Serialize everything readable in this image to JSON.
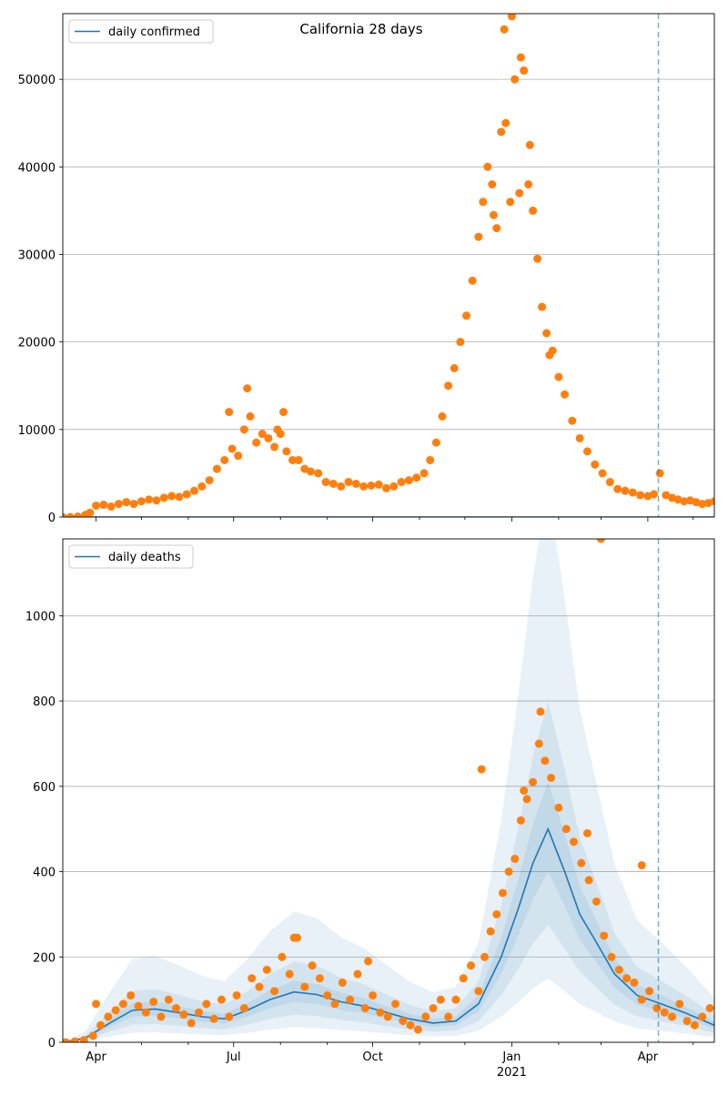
{
  "colors": {
    "model_line": "#1f77b4",
    "observed_dots": "#ff7f0e",
    "band": "#1f77b4",
    "grid": "#b0b0b0",
    "vline": "#1f77b4"
  },
  "chart_data": [
    {
      "type": "scatter",
      "title": "California 28 days",
      "legend": {
        "label": "daily confirmed",
        "placement": "top-left"
      },
      "xlabel": "",
      "ylabel": "",
      "ylim": [
        0,
        57500
      ],
      "yticks": [
        0,
        10000,
        20000,
        30000,
        40000,
        50000
      ],
      "grid": "horizontal",
      "model_series": {
        "name": "daily confirmed",
        "x": [
          "2020-03-10",
          "2021-05-15"
        ],
        "y": [
          0,
          0
        ]
      },
      "observed": {
        "x": [
          "2020-03-10",
          "2020-03-15",
          "2020-03-20",
          "2020-03-25",
          "2020-03-28",
          "2020-04-01",
          "2020-04-06",
          "2020-04-11",
          "2020-04-16",
          "2020-04-21",
          "2020-04-26",
          "2020-05-01",
          "2020-05-06",
          "2020-05-11",
          "2020-05-16",
          "2020-05-21",
          "2020-05-26",
          "2020-05-31",
          "2020-06-05",
          "2020-06-10",
          "2020-06-15",
          "2020-06-20",
          "2020-06-25",
          "2020-06-30",
          "2020-07-04",
          "2020-07-08",
          "2020-07-12",
          "2020-07-16",
          "2020-07-20",
          "2020-07-24",
          "2020-07-28",
          "2020-08-01",
          "2020-08-05",
          "2020-08-09",
          "2020-08-13",
          "2020-08-17",
          "2020-08-21",
          "2020-08-26",
          "2020-08-31",
          "2020-09-05",
          "2020-09-10",
          "2020-09-15",
          "2020-09-20",
          "2020-09-25",
          "2020-09-30",
          "2020-10-05",
          "2020-10-10",
          "2020-10-15",
          "2020-10-20",
          "2020-10-25",
          "2020-10-30",
          "2020-11-04",
          "2020-11-08",
          "2020-11-12",
          "2020-11-16",
          "2020-11-20",
          "2020-11-24",
          "2020-11-28",
          "2020-12-02",
          "2020-12-06",
          "2020-12-10",
          "2020-12-13",
          "2020-12-16",
          "2020-12-19",
          "2020-12-22",
          "2020-12-25",
          "2020-12-28",
          "2020-12-31",
          "2021-01-03",
          "2021-01-06",
          "2021-01-09",
          "2021-01-12",
          "2021-01-15",
          "2021-01-18",
          "2021-01-21",
          "2021-01-24",
          "2021-01-28",
          "2021-02-01",
          "2021-02-05",
          "2021-02-10",
          "2021-02-15",
          "2021-02-20",
          "2021-02-25",
          "2021-03-02",
          "2021-03-07",
          "2021-03-12",
          "2021-03-17",
          "2021-03-22",
          "2021-03-27",
          "2021-04-01",
          "2021-04-05",
          "2021-04-09",
          "2021-04-13",
          "2021-04-17",
          "2021-04-21",
          "2021-04-25",
          "2021-04-29",
          "2021-05-03",
          "2021-05-07",
          "2021-05-11",
          "2021-05-15",
          "2020-06-28",
          "2020-07-10",
          "2020-07-30",
          "2020-08-03",
          "2020-12-27",
          "2021-01-01",
          "2021-01-07",
          "2021-01-13",
          "2020-12-20",
          "2021-01-26"
        ],
        "y": [
          0,
          0,
          50,
          250,
          500,
          1300,
          1400,
          1200,
          1500,
          1700,
          1500,
          1800,
          2000,
          1900,
          2200,
          2400,
          2300,
          2600,
          3000,
          3500,
          4200,
          5500,
          6500,
          7800,
          7000,
          10000,
          11500,
          8500,
          9500,
          9000,
          8000,
          9500,
          7500,
          6500,
          6500,
          5500,
          5200,
          5000,
          4000,
          3800,
          3500,
          4000,
          3800,
          3500,
          3600,
          3700,
          3300,
          3500,
          4000,
          4200,
          4500,
          5000,
          6500,
          8500,
          11500,
          15000,
          17000,
          20000,
          23000,
          27000,
          32000,
          36000,
          40000,
          38000,
          33000,
          44000,
          45000,
          36000,
          50000,
          37000,
          51000,
          38000,
          35000,
          29500,
          24000,
          21000,
          19000,
          16000,
          14000,
          11000,
          9000,
          7500,
          6000,
          5000,
          4000,
          3200,
          3000,
          2800,
          2500,
          2400,
          2600,
          5000,
          2500,
          2200,
          2000,
          1800,
          1900,
          1700,
          1500,
          1600,
          1800,
          12000,
          14700,
          10000,
          12000,
          55700,
          57200,
          52500,
          42500,
          34500,
          18500
        ]
      },
      "vline_date": "2021-04-08"
    },
    {
      "type": "scatter",
      "title": "",
      "legend": {
        "label": "daily deaths",
        "placement": "top-left"
      },
      "xlabel": "",
      "ylabel": "",
      "ylim": [
        0,
        1180
      ],
      "yticks": [
        0,
        200,
        400,
        600,
        800,
        1000
      ],
      "grid": "horizontal",
      "model_series": {
        "name": "daily deaths",
        "x": [
          "2020-03-10",
          "2020-03-25",
          "2020-04-10",
          "2020-04-25",
          "2020-05-10",
          "2020-05-25",
          "2020-06-10",
          "2020-06-25",
          "2020-07-10",
          "2020-07-25",
          "2020-08-10",
          "2020-08-25",
          "2020-09-10",
          "2020-09-25",
          "2020-10-10",
          "2020-10-25",
          "2020-11-10",
          "2020-11-25",
          "2020-12-10",
          "2020-12-25",
          "2021-01-05",
          "2021-01-15",
          "2021-01-25",
          "2021-02-05",
          "2021-02-15",
          "2021-02-25",
          "2021-03-10",
          "2021-03-25",
          "2021-04-10",
          "2021-04-25",
          "2021-05-15"
        ],
        "y": [
          0,
          10,
          45,
          75,
          78,
          70,
          60,
          55,
          75,
          100,
          118,
          112,
          95,
          85,
          70,
          55,
          45,
          50,
          90,
          200,
          310,
          420,
          500,
          400,
          300,
          240,
          160,
          110,
          90,
          70,
          40
        ]
      },
      "bands": [
        {
          "upper_mult": 1.22,
          "lower_mult": 0.8
        },
        {
          "upper_mult": 1.6,
          "lower_mult": 0.55
        },
        {
          "upper_mult": 2.6,
          "lower_mult": 0.3
        }
      ],
      "observed": {
        "x": [
          "2020-03-12",
          "2020-03-18",
          "2020-03-24",
          "2020-03-30",
          "2020-04-04",
          "2020-04-09",
          "2020-04-14",
          "2020-04-19",
          "2020-04-24",
          "2020-04-29",
          "2020-05-04",
          "2020-05-09",
          "2020-05-14",
          "2020-05-19",
          "2020-05-24",
          "2020-05-29",
          "2020-06-03",
          "2020-06-08",
          "2020-06-13",
          "2020-06-18",
          "2020-06-23",
          "2020-06-28",
          "2020-07-03",
          "2020-07-08",
          "2020-07-13",
          "2020-07-18",
          "2020-07-23",
          "2020-07-28",
          "2020-08-02",
          "2020-08-07",
          "2020-08-12",
          "2020-08-17",
          "2020-08-22",
          "2020-08-27",
          "2020-09-01",
          "2020-09-06",
          "2020-09-11",
          "2020-09-16",
          "2020-09-21",
          "2020-09-26",
          "2020-10-01",
          "2020-10-06",
          "2020-10-11",
          "2020-10-16",
          "2020-10-21",
          "2020-10-26",
          "2020-10-31",
          "2020-11-05",
          "2020-11-10",
          "2020-11-15",
          "2020-11-20",
          "2020-11-25",
          "2020-11-30",
          "2020-12-05",
          "2020-12-10",
          "2020-12-14",
          "2020-12-18",
          "2020-12-22",
          "2020-12-26",
          "2020-12-30",
          "2021-01-03",
          "2021-01-07",
          "2021-01-11",
          "2021-01-15",
          "2021-01-19",
          "2021-01-23",
          "2021-01-27",
          "2021-02-01",
          "2021-02-06",
          "2021-02-11",
          "2021-02-16",
          "2021-02-21",
          "2021-02-26",
          "2021-03-03",
          "2021-03-08",
          "2021-03-13",
          "2021-03-18",
          "2021-03-23",
          "2021-03-28",
          "2021-04-02",
          "2021-04-07",
          "2021-04-12",
          "2021-04-17",
          "2021-04-22",
          "2021-04-27",
          "2021-05-02",
          "2021-05-07",
          "2021-05-12",
          "2021-03-01",
          "2020-08-10",
          "2020-09-28",
          "2020-04-01",
          "2021-01-20",
          "2021-01-09",
          "2021-02-20",
          "2020-12-12",
          "2021-03-28"
        ],
        "y": [
          0,
          2,
          5,
          15,
          40,
          60,
          75,
          90,
          110,
          85,
          70,
          95,
          60,
          100,
          80,
          65,
          45,
          70,
          90,
          55,
          100,
          60,
          110,
          80,
          150,
          130,
          170,
          120,
          200,
          160,
          245,
          130,
          180,
          150,
          110,
          90,
          140,
          100,
          160,
          80,
          110,
          70,
          60,
          90,
          50,
          40,
          30,
          60,
          80,
          100,
          60,
          100,
          150,
          180,
          120,
          200,
          260,
          300,
          350,
          400,
          430,
          520,
          570,
          610,
          700,
          660,
          620,
          550,
          500,
          470,
          420,
          380,
          330,
          250,
          200,
          170,
          150,
          140,
          100,
          120,
          80,
          70,
          60,
          90,
          50,
          40,
          60,
          80,
          1180,
          245,
          190,
          90,
          775,
          590,
          490,
          640,
          415
        ]
      },
      "vline_date": "2021-04-08"
    }
  ],
  "xaxis": {
    "start": "2020-03-10",
    "end": "2021-05-15",
    "major_ticks": [
      {
        "date": "2020-04-01",
        "label": "Apr"
      },
      {
        "date": "2020-07-01",
        "label": "Jul"
      },
      {
        "date": "2020-10-01",
        "label": "Oct"
      },
      {
        "date": "2021-01-01",
        "label": "Jan"
      },
      {
        "date": "2021-04-01",
        "label": "Apr"
      }
    ],
    "year_label": "2021"
  }
}
